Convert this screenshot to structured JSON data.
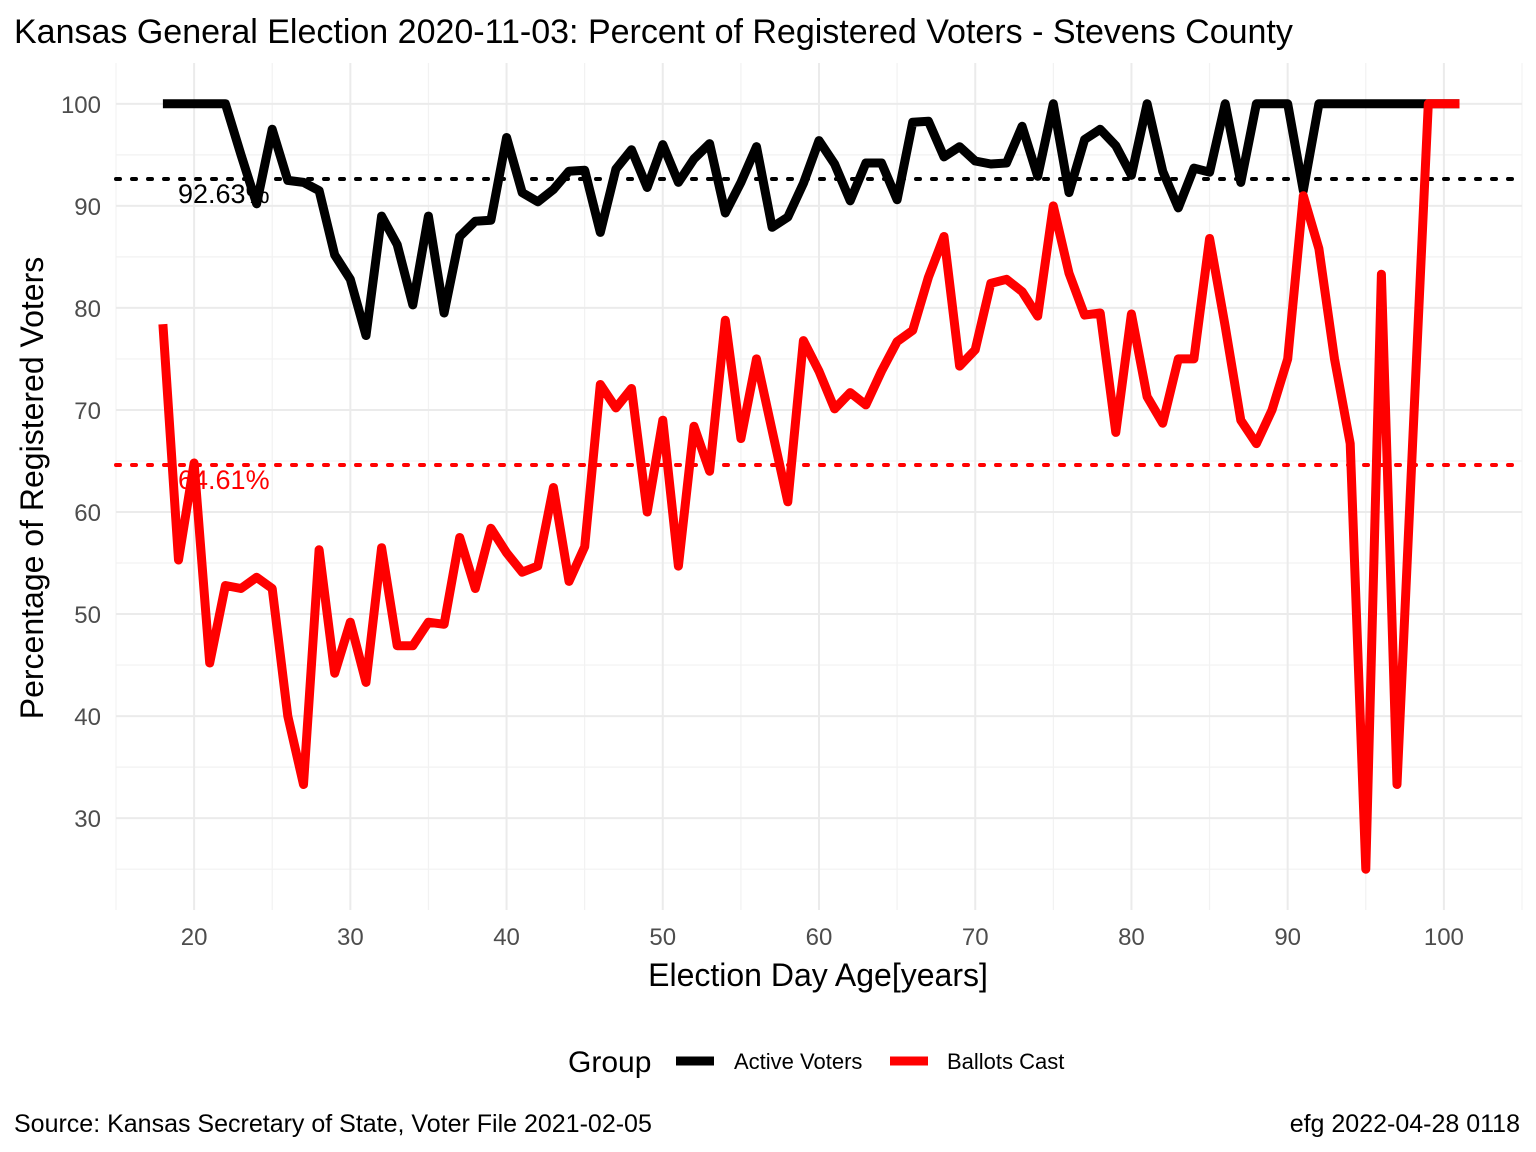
{
  "chart_data": {
    "type": "line",
    "title": "Kansas General Election 2020-11-03:  Percent of Registered Voters - Stevens County",
    "xlabel": "Election Day Age[years]",
    "ylabel": "Percentage of Registered Voters",
    "xlim": [
      15,
      105
    ],
    "ylim": [
      21,
      104
    ],
    "x_ticks": [
      20,
      30,
      40,
      50,
      60,
      70,
      80,
      90,
      100
    ],
    "y_ticks": [
      30,
      40,
      50,
      60,
      70,
      80,
      90,
      100
    ],
    "grid": true,
    "legend_position": "bottom",
    "legend_title": "Group",
    "reference_lines": [
      {
        "value": 92.63,
        "label": "92.63%",
        "color": "#000000"
      },
      {
        "value": 64.61,
        "label": "64.61%",
        "color": "#ff0000"
      }
    ],
    "x": [
      18,
      19,
      20,
      21,
      22,
      23,
      24,
      25,
      26,
      27,
      28,
      29,
      30,
      31,
      32,
      33,
      34,
      35,
      36,
      37,
      38,
      39,
      40,
      41,
      42,
      43,
      44,
      45,
      46,
      47,
      48,
      49,
      50,
      51,
      52,
      53,
      54,
      55,
      56,
      57,
      58,
      59,
      60,
      61,
      62,
      63,
      64,
      65,
      66,
      67,
      68,
      69,
      70,
      71,
      72,
      73,
      74,
      75,
      76,
      77,
      78,
      79,
      80,
      81,
      82,
      83,
      84,
      85,
      86,
      87,
      88,
      89,
      90,
      91,
      92,
      93,
      94,
      95,
      96,
      97,
      98,
      99,
      100,
      101
    ],
    "series": [
      {
        "name": "Active Voters",
        "color": "#000000",
        "values": [
          100,
          100,
          100,
          100,
          100,
          95,
          90.2,
          97.5,
          92.5,
          92.3,
          91.5,
          85.2,
          82.8,
          77.3,
          89,
          86.2,
          80.3,
          89,
          79.5,
          87,
          88.5,
          88.6,
          96.7,
          91.3,
          90.4,
          91.6,
          93.4,
          93.5,
          87.4,
          93.6,
          95.5,
          91.8,
          96,
          92.3,
          94.6,
          96.1,
          89.3,
          92.3,
          95.8,
          87.9,
          88.9,
          92.2,
          96.4,
          94.1,
          90.5,
          94.2,
          94.2,
          90.6,
          98.2,
          98.3,
          94.8,
          95.8,
          94.4,
          94.1,
          94.2,
          97.8,
          92.9,
          100,
          91.3,
          96.5,
          97.5,
          95.9,
          93,
          100,
          93.4,
          89.8,
          93.7,
          93.3,
          100,
          92.3,
          100,
          100,
          100,
          91.5,
          100,
          100,
          100,
          100,
          100,
          100,
          100,
          100,
          100,
          100
        ]
      },
      {
        "name": "Ballots Cast",
        "color": "#ff0000",
        "values": [
          78.4,
          55.3,
          64.8,
          45.2,
          52.8,
          52.5,
          53.6,
          52.5,
          40,
          33.3,
          56.3,
          44.2,
          49.2,
          43.3,
          56.5,
          46.9,
          46.9,
          49.2,
          49,
          57.5,
          52.5,
          58.4,
          56,
          54.1,
          54.7,
          62.4,
          53.2,
          56.6,
          72.5,
          70.2,
          72.1,
          60,
          69,
          54.7,
          68.4,
          64,
          78.8,
          67.2,
          75,
          68,
          61,
          76.8,
          73.8,
          70.1,
          71.7,
          70.5,
          73.8,
          76.7,
          77.8,
          83,
          87,
          74.3,
          75.9,
          82.4,
          82.8,
          81.6,
          79.2,
          90,
          83.4,
          79.3,
          79.5,
          67.8,
          79.4,
          71.3,
          68.7,
          75,
          75,
          86.8,
          78.2,
          69,
          66.7,
          70,
          75,
          91,
          85.8,
          75,
          66.7,
          25,
          83.3,
          33.3,
          66.7,
          100,
          100,
          100
        ]
      }
    ]
  },
  "caption": {
    "source": "Source:  Kansas Secretary of State, Voter File  2021-02-05",
    "credit": "efg 2022-04-28 0118"
  }
}
